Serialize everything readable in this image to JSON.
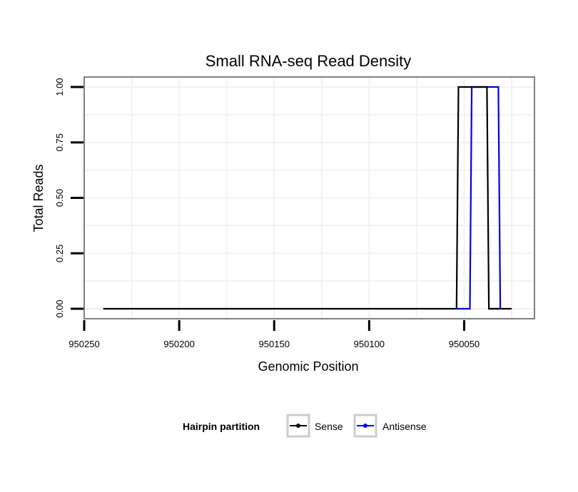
{
  "chart_data": {
    "type": "line",
    "title": "Small RNA-seq Read Density",
    "xlabel": "Genomic Position",
    "ylabel": "Total Reads",
    "xlim": [
      950250,
      950013
    ],
    "ylim": [
      -0.045,
      1.045
    ],
    "x_reversed": true,
    "x_ticks": [
      950250,
      950200,
      950150,
      950100,
      950050
    ],
    "x_tick_labels": [
      "950250",
      "950200",
      "950150",
      "950100",
      "950050"
    ],
    "y_ticks": [
      0,
      0.25,
      0.5,
      0.75,
      1
    ],
    "y_tick_labels": [
      "0.00",
      "0.25",
      "0.50",
      "0.75",
      "1.00"
    ],
    "grid": true,
    "legend_position": "bottom",
    "legend_title": "Hairpin partition",
    "series": [
      {
        "name": "Sense",
        "color": "#000000",
        "x": [
          950240,
          950054,
          950053,
          950038,
          950037,
          950025
        ],
        "y": [
          0,
          0,
          1,
          1,
          0,
          0
        ]
      },
      {
        "name": "Antisense",
        "color": "#0000ee",
        "x": [
          950054,
          950047,
          950046,
          950032,
          950031,
          950037
        ],
        "y": [
          0,
          0,
          1,
          1,
          0,
          0
        ]
      }
    ]
  }
}
